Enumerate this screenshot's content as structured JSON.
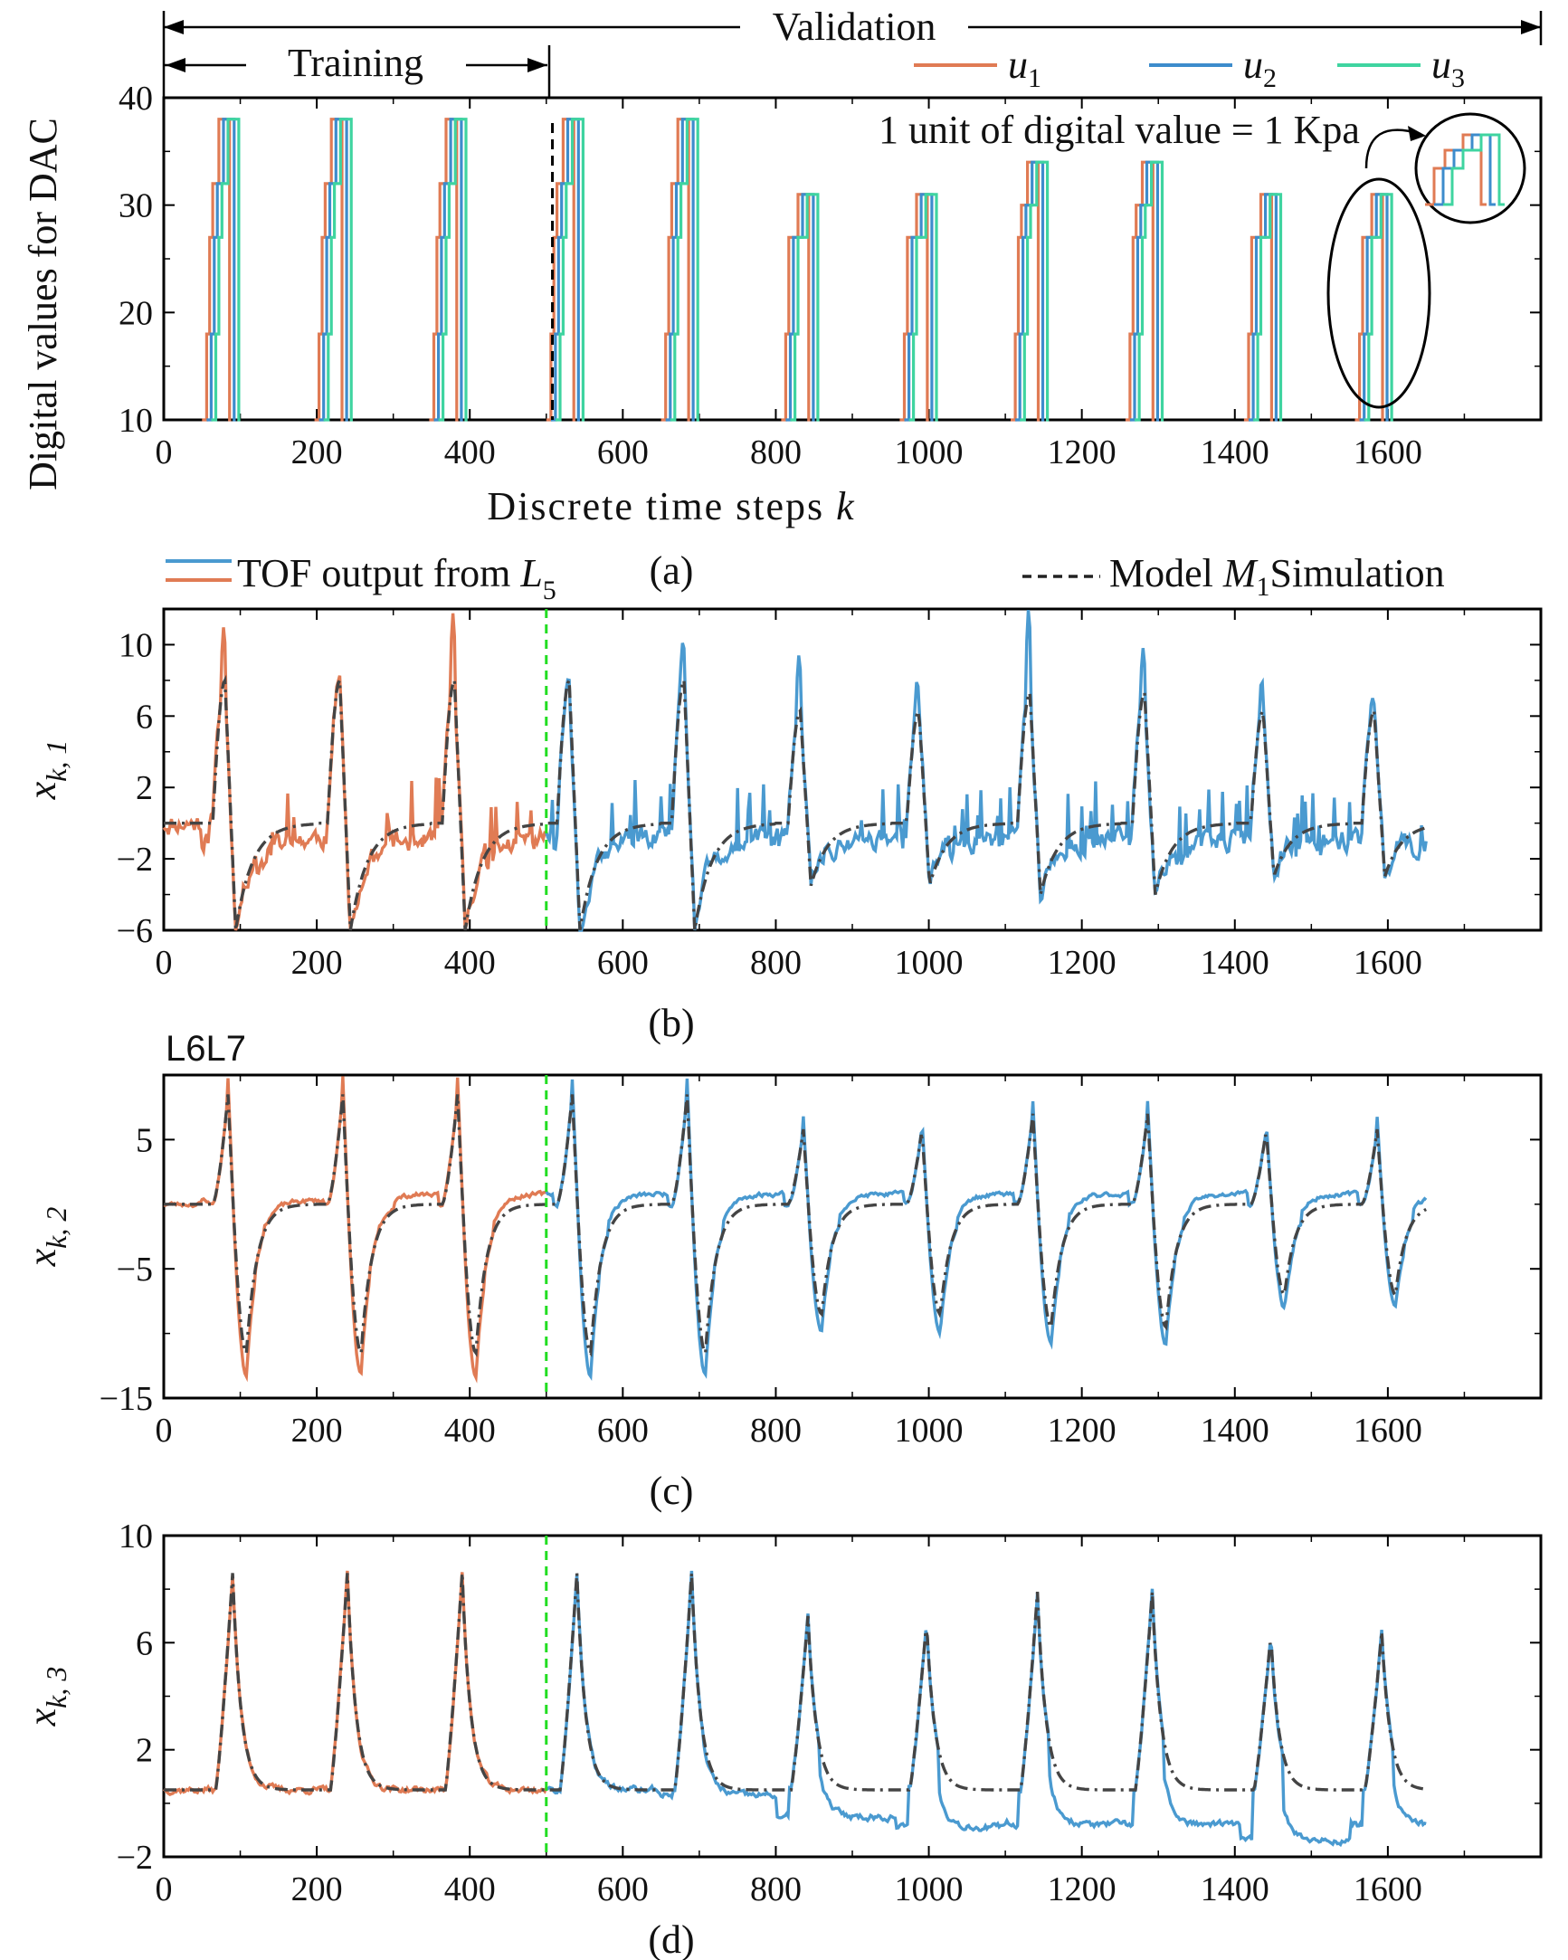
{
  "colors": {
    "training": "#e07b54",
    "validation": "#4a9ad0",
    "u1": "#e07b54",
    "u2": "#3d8ccc",
    "u3": "#3fd4a0",
    "model": "#444444",
    "divider": "#22dd22",
    "axis": "#000000"
  },
  "header": {
    "validation_label": "Validation",
    "training_label": "Training"
  },
  "legends": {
    "a": [
      {
        "key": "u1",
        "label": "u",
        "sub": "1"
      },
      {
        "key": "u2",
        "label": "u",
        "sub": "2"
      },
      {
        "key": "u3",
        "label": "u",
        "sub": "3"
      }
    ],
    "tof_label": "TOF output from ",
    "tof_math": "L",
    "tof_sub": "5",
    "model_label_pre": "Model ",
    "model_math": "M",
    "model_sub": "1",
    "model_label_post": "Simulation"
  },
  "annotation_a": "1 unit of digital value = 1 Kpa",
  "extra_label_c": "L6L7",
  "chart_data": [
    {
      "id": "a",
      "caption": "(a)",
      "type": "line",
      "style": "step",
      "ylabel": "Digital values for DAC",
      "xlabel_text": "Discrete time steps ",
      "xlabel_math": "k",
      "xlim": [
        0,
        1800
      ],
      "ylim": [
        10,
        40
      ],
      "xticks": [
        0,
        200,
        400,
        600,
        800,
        1000,
        1200,
        1400,
        1600
      ],
      "yticks": [
        10,
        20,
        30,
        40
      ],
      "divider_x": 508,
      "pulses": [
        {
          "k0": 50,
          "mid": 32,
          "peak": 38
        },
        {
          "k0": 197,
          "mid": 32,
          "peak": 38
        },
        {
          "k0": 347,
          "mid": 32,
          "peak": 38
        },
        {
          "k0": 500,
          "mid": 32,
          "peak": 38
        },
        {
          "k0": 650,
          "mid": 32,
          "peak": 38
        },
        {
          "k0": 807,
          "mid": 27,
          "peak": 31
        },
        {
          "k0": 962,
          "mid": 27,
          "peak": 31
        },
        {
          "k0": 1107,
          "mid": 30,
          "peak": 34
        },
        {
          "k0": 1257,
          "mid": 30,
          "peak": 34
        },
        {
          "k0": 1412,
          "mid": 27,
          "peak": 31
        },
        {
          "k0": 1557,
          "mid": 27,
          "peak": 31
        }
      ],
      "series": [
        {
          "name": "u1",
          "offset": 0
        },
        {
          "name": "u2",
          "offset": 6
        },
        {
          "name": "u3",
          "offset": 12
        }
      ]
    },
    {
      "id": "b",
      "caption": "(b)",
      "type": "line",
      "ylabel_main": "x",
      "ylabel_sub": "k, 1",
      "xlim": [
        0,
        1800
      ],
      "ylim": [
        -6,
        12
      ],
      "xticks": [
        0,
        200,
        400,
        600,
        800,
        1000,
        1200,
        1400,
        1600
      ],
      "yticks": [
        -6,
        -2,
        2,
        6,
        10
      ],
      "train_end": 500,
      "x_end": 1650,
      "cycles": [
        {
          "k0": 50,
          "peak": 8.0,
          "trough": -6.0,
          "spike": 11
        },
        {
          "k0": 200,
          "peak": 8.0,
          "trough": -6.0,
          "spike": 8.5
        },
        {
          "k0": 350,
          "peak": 8.0,
          "trough": -6.0,
          "spike": 12.5
        },
        {
          "k0": 500,
          "peak": 8.0,
          "trough": -6.0,
          "spike": 8.2
        },
        {
          "k0": 650,
          "peak": 8.0,
          "trough": -6.0,
          "spike": 9.5
        },
        {
          "k0": 802,
          "peak": 6.3,
          "trough": -3.5,
          "spike": 9.0
        },
        {
          "k0": 957,
          "peak": 6.3,
          "trough": -3.5,
          "spike": 8.2
        },
        {
          "k0": 1102,
          "peak": 7.3,
          "trough": -4.0,
          "spike": 11.3
        },
        {
          "k0": 1252,
          "peak": 7.3,
          "trough": -4.0,
          "spike": 10.4
        },
        {
          "k0": 1407,
          "peak": 6.3,
          "trough": -3.0,
          "spike": 8.2
        },
        {
          "k0": 1552,
          "peak": 6.3,
          "trough": -3.0,
          "spike": 6.8
        }
      ],
      "baseline": 0.0,
      "measured_offset": -0.8,
      "noise": 1.2
    },
    {
      "id": "c",
      "caption": "(c)",
      "type": "line",
      "ylabel_main": "x",
      "ylabel_sub": "k, 2",
      "xlim": [
        0,
        1800
      ],
      "ylim": [
        -15,
        10
      ],
      "xticks": [
        0,
        200,
        400,
        600,
        800,
        1000,
        1200,
        1400,
        1600
      ],
      "yticks": [
        -15,
        -5,
        5
      ],
      "train_end": 500,
      "x_end": 1650,
      "cycles": [
        {
          "k0": 50,
          "peak": 8.5,
          "trough": -11.5
        },
        {
          "k0": 200,
          "peak": 8.5,
          "trough": -11.5
        },
        {
          "k0": 350,
          "peak": 8.5,
          "trough": -11.5
        },
        {
          "k0": 500,
          "peak": 8.5,
          "trough": -11.5
        },
        {
          "k0": 650,
          "peak": 8.5,
          "trough": -11.5
        },
        {
          "k0": 802,
          "peak": 5.8,
          "trough": -8.5
        },
        {
          "k0": 957,
          "peak": 5.8,
          "trough": -8.5
        },
        {
          "k0": 1102,
          "peak": 7.0,
          "trough": -9.5
        },
        {
          "k0": 1252,
          "peak": 7.0,
          "trough": -9.5
        },
        {
          "k0": 1407,
          "peak": 5.8,
          "trough": -7.0
        },
        {
          "k0": 1552,
          "peak": 5.8,
          "trough": -7.0
        }
      ],
      "baseline": 0.0,
      "measured_offset": 0.8,
      "noise": 0.35
    },
    {
      "id": "d",
      "caption": "(d)",
      "type": "line",
      "ylabel_main": "x",
      "ylabel_sub": "k, 3",
      "xlim": [
        0,
        1800
      ],
      "ylim": [
        -2,
        10
      ],
      "xticks": [
        0,
        200,
        400,
        600,
        800,
        1000,
        1200,
        1400,
        1600
      ],
      "yticks": [
        -2,
        2,
        6,
        10
      ],
      "train_end": 500,
      "x_end": 1650,
      "cycles": [
        {
          "k0": 50,
          "peak": 8.6
        },
        {
          "k0": 200,
          "peak": 8.6
        },
        {
          "k0": 350,
          "peak": 8.6
        },
        {
          "k0": 500,
          "peak": 8.6
        },
        {
          "k0": 650,
          "peak": 8.6
        },
        {
          "k0": 802,
          "peak": 7.0
        },
        {
          "k0": 957,
          "peak": 6.8
        },
        {
          "k0": 1102,
          "peak": 7.9
        },
        {
          "k0": 1252,
          "peak": 7.9
        },
        {
          "k0": 1407,
          "peak": 6.3
        },
        {
          "k0": 1552,
          "peak": 6.4
        }
      ],
      "baseline": 0.5,
      "measured_offsets": [
        0.0,
        0.0,
        0.0,
        0.0,
        -0.2,
        -1.0,
        -1.4,
        -1.3,
        -1.3,
        -1.9,
        -1.3
      ],
      "noise": 0.25
    }
  ]
}
